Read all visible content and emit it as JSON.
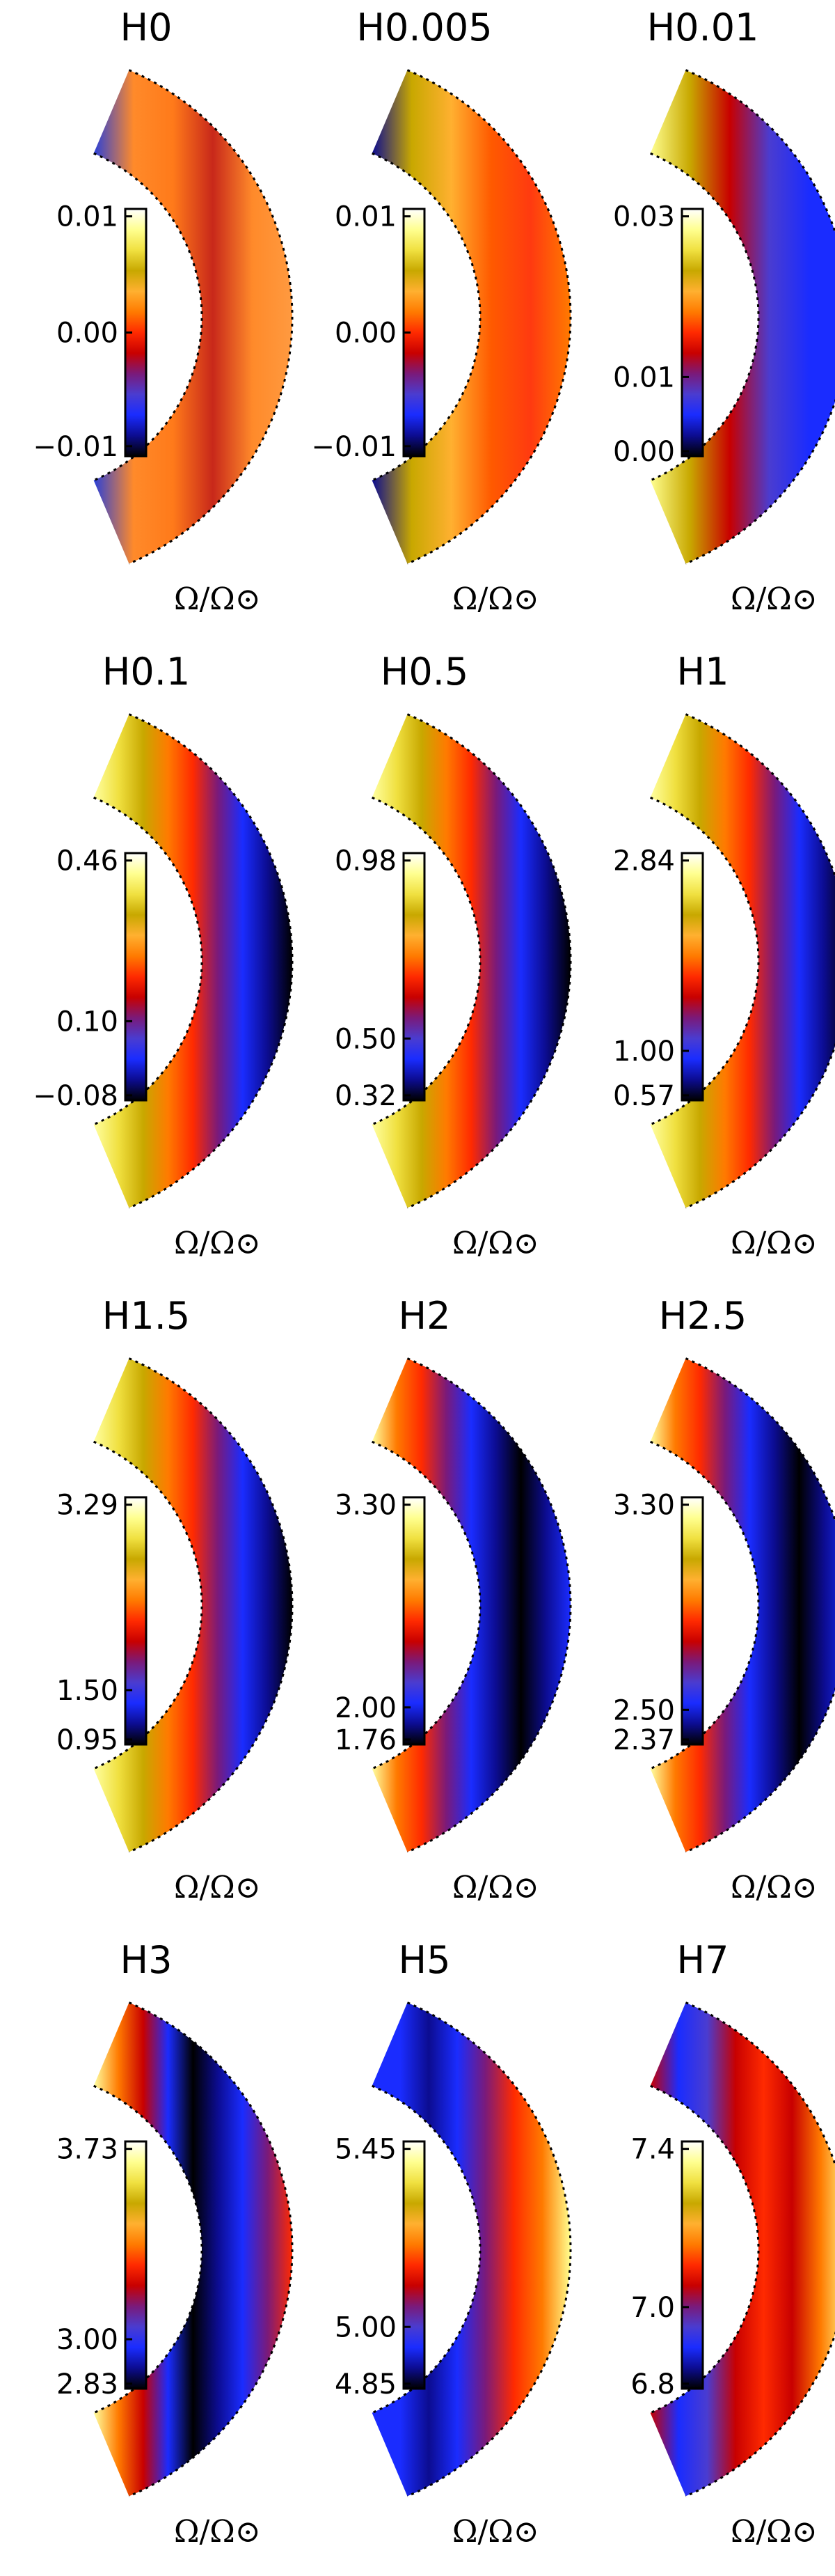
{
  "figure": {
    "panels": [
      {
        "title": "H0",
        "ticks": [
          "0.01",
          "0.00",
          "−0.01"
        ],
        "tick_fracs": [
          0.97,
          0.5,
          0.04
        ],
        "quantity": "Ω/Ω⊙",
        "pattern": "flat-orange"
      },
      {
        "title": "H0.005",
        "ticks": [
          "0.01",
          "0.00",
          "−0.01"
        ],
        "tick_fracs": [
          0.97,
          0.5,
          0.04
        ],
        "quantity": "Ω/Ω⊙",
        "pattern": "flat-orange-olive"
      },
      {
        "title": "H0.01",
        "ticks": [
          "0.03",
          "0.01",
          "0.00"
        ],
        "tick_fracs": [
          0.97,
          0.32,
          0.02
        ],
        "quantity": "Ω/Ω⊙",
        "pattern": "blue-edges-red"
      },
      {
        "title": "H0.1",
        "ticks": [
          "0.46",
          "0.10",
          "−0.08"
        ],
        "tick_fracs": [
          0.97,
          0.32,
          0.02
        ],
        "quantity": "Ω/Ω⊙",
        "pattern": "radial"
      },
      {
        "title": "H0.5",
        "ticks": [
          "0.98",
          "0.50",
          "0.32"
        ],
        "tick_fracs": [
          0.97,
          0.25,
          0.02
        ],
        "quantity": "Ω/Ω⊙",
        "pattern": "radial"
      },
      {
        "title": "H1",
        "ticks": [
          "2.84",
          "1.00",
          "0.57"
        ],
        "tick_fracs": [
          0.97,
          0.2,
          0.02
        ],
        "quantity": "Ω/Ω⊙",
        "pattern": "radial"
      },
      {
        "title": "H1.5",
        "ticks": [
          "3.29",
          "1.50",
          "0.95"
        ],
        "tick_fracs": [
          0.97,
          0.22,
          0.02
        ],
        "quantity": "Ω/Ω⊙",
        "pattern": "radial"
      },
      {
        "title": "H2",
        "ticks": [
          "3.30",
          "2.00",
          "1.76"
        ],
        "tick_fracs": [
          0.97,
          0.15,
          0.02
        ],
        "quantity": "Ω/Ω⊙",
        "pattern": "radial-thin"
      },
      {
        "title": "H2.5",
        "ticks": [
          "3.30",
          "2.50",
          "2.37"
        ],
        "tick_fracs": [
          0.97,
          0.14,
          0.02
        ],
        "quantity": "Ω/Ω⊙",
        "pattern": "radial-thin"
      },
      {
        "title": "H3",
        "ticks": [
          "3.73",
          "3.00",
          "2.83"
        ],
        "tick_fracs": [
          0.97,
          0.2,
          0.02
        ],
        "quantity": "Ω/Ω⊙",
        "pattern": "mixed"
      },
      {
        "title": "H5",
        "ticks": [
          "5.45",
          "5.00",
          "4.85"
        ],
        "tick_fracs": [
          0.97,
          0.25,
          0.02
        ],
        "quantity": "Ω/Ω⊙",
        "pattern": "equator-bright"
      },
      {
        "title": "H7",
        "ticks": [
          "7.4",
          "7.0",
          "6.8"
        ],
        "tick_fracs": [
          0.97,
          0.33,
          0.02
        ],
        "quantity": "Ω/Ω⊙",
        "pattern": "equator-red"
      }
    ],
    "colorbar_stops": [
      "#000000",
      "#0c0c90",
      "#1a2cff",
      "#4a3cd0",
      "#7a1a7a",
      "#c80000",
      "#ff2a00",
      "#ff7a00",
      "#ffb030",
      "#c8a800",
      "#f0e040",
      "#ffff90",
      "#ffffff"
    ]
  }
}
